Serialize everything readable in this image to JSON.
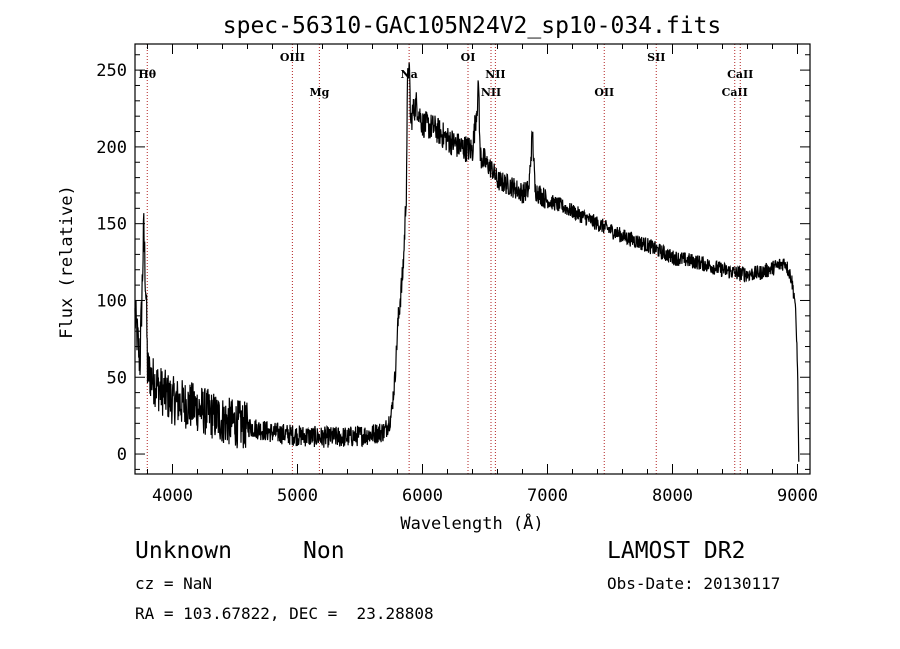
{
  "chart_data": {
    "type": "line",
    "title": "spec-56310-GAC105N24V2_sp10-034.fits",
    "xlabel": "Wavelength (Å)",
    "ylabel": "Flux (relative)",
    "xlim": [
      3700,
      9100
    ],
    "ylim": [
      -13,
      267
    ],
    "x_ticks": [
      4000,
      5000,
      6000,
      7000,
      8000,
      9000
    ],
    "y_ticks": [
      0,
      50,
      100,
      150,
      200,
      250
    ],
    "grid": false,
    "line_color": "#000000",
    "marker_color": "#b22222",
    "line_markers": [
      {
        "label": "Hθ",
        "x": 3798,
        "row": 1
      },
      {
        "label": "OIII",
        "x": 4959,
        "row": 0
      },
      {
        "label": "Mg",
        "x": 5175,
        "row": 2
      },
      {
        "label": "Na",
        "x": 5893,
        "row": 1
      },
      {
        "label": "OI",
        "x": 6364,
        "row": 0
      },
      {
        "label": "NII",
        "x": 6548,
        "row": 2
      },
      {
        "label": "NII",
        "x": 6583,
        "row": 1
      },
      {
        "label": "OII",
        "x": 7454,
        "row": 2
      },
      {
        "label": "SII",
        "x": 7870,
        "row": 0
      },
      {
        "label": "CaII",
        "x": 8498,
        "row": 2
      },
      {
        "label": "CaII",
        "x": 8542,
        "row": 1
      }
    ],
    "series": [
      {
        "x": [
          3700,
          3740,
          3770,
          3790,
          3800,
          3830,
          3900,
          4000,
          4200,
          4400,
          4600,
          4800,
          5000,
          5200,
          5400,
          5600,
          5700,
          5750,
          5780,
          5800,
          5820,
          5840,
          5850,
          5870,
          5880,
          5890,
          5900,
          5905,
          5920,
          5950,
          6000,
          6100,
          6200,
          6300,
          6400,
          6440,
          6450,
          6460,
          6500,
          6560,
          6600,
          6700,
          6800,
          6850,
          6880,
          6900,
          7000,
          7100,
          7200,
          7400,
          7600,
          7800,
          8000,
          8200,
          8400,
          8500,
          8600,
          8700,
          8800,
          8900,
          8950,
          8980,
          9000,
          9010
        ],
        "y": [
          90,
          60,
          145,
          100,
          55,
          50,
          42,
          35,
          30,
          22,
          18,
          14,
          12,
          11,
          11,
          13,
          15,
          25,
          50,
          80,
          100,
          115,
          130,
          170,
          240,
          255,
          235,
          215,
          222,
          228,
          215,
          212,
          205,
          200,
          198,
          230,
          240,
          195,
          190,
          185,
          178,
          175,
          170,
          172,
          210,
          172,
          165,
          162,
          158,
          150,
          142,
          136,
          128,
          125,
          120,
          118,
          117,
          118,
          121,
          125,
          115,
          100,
          60,
          -5
        ]
      }
    ]
  },
  "footer": {
    "object_class": "Unknown",
    "object_subclass": "Non",
    "redshift": "cz = NaN",
    "coordinates": "RA = 103.67822, DEC =  23.28808",
    "survey": "LAMOST DR2",
    "obs_date": "Obs-Date: 20130117"
  }
}
